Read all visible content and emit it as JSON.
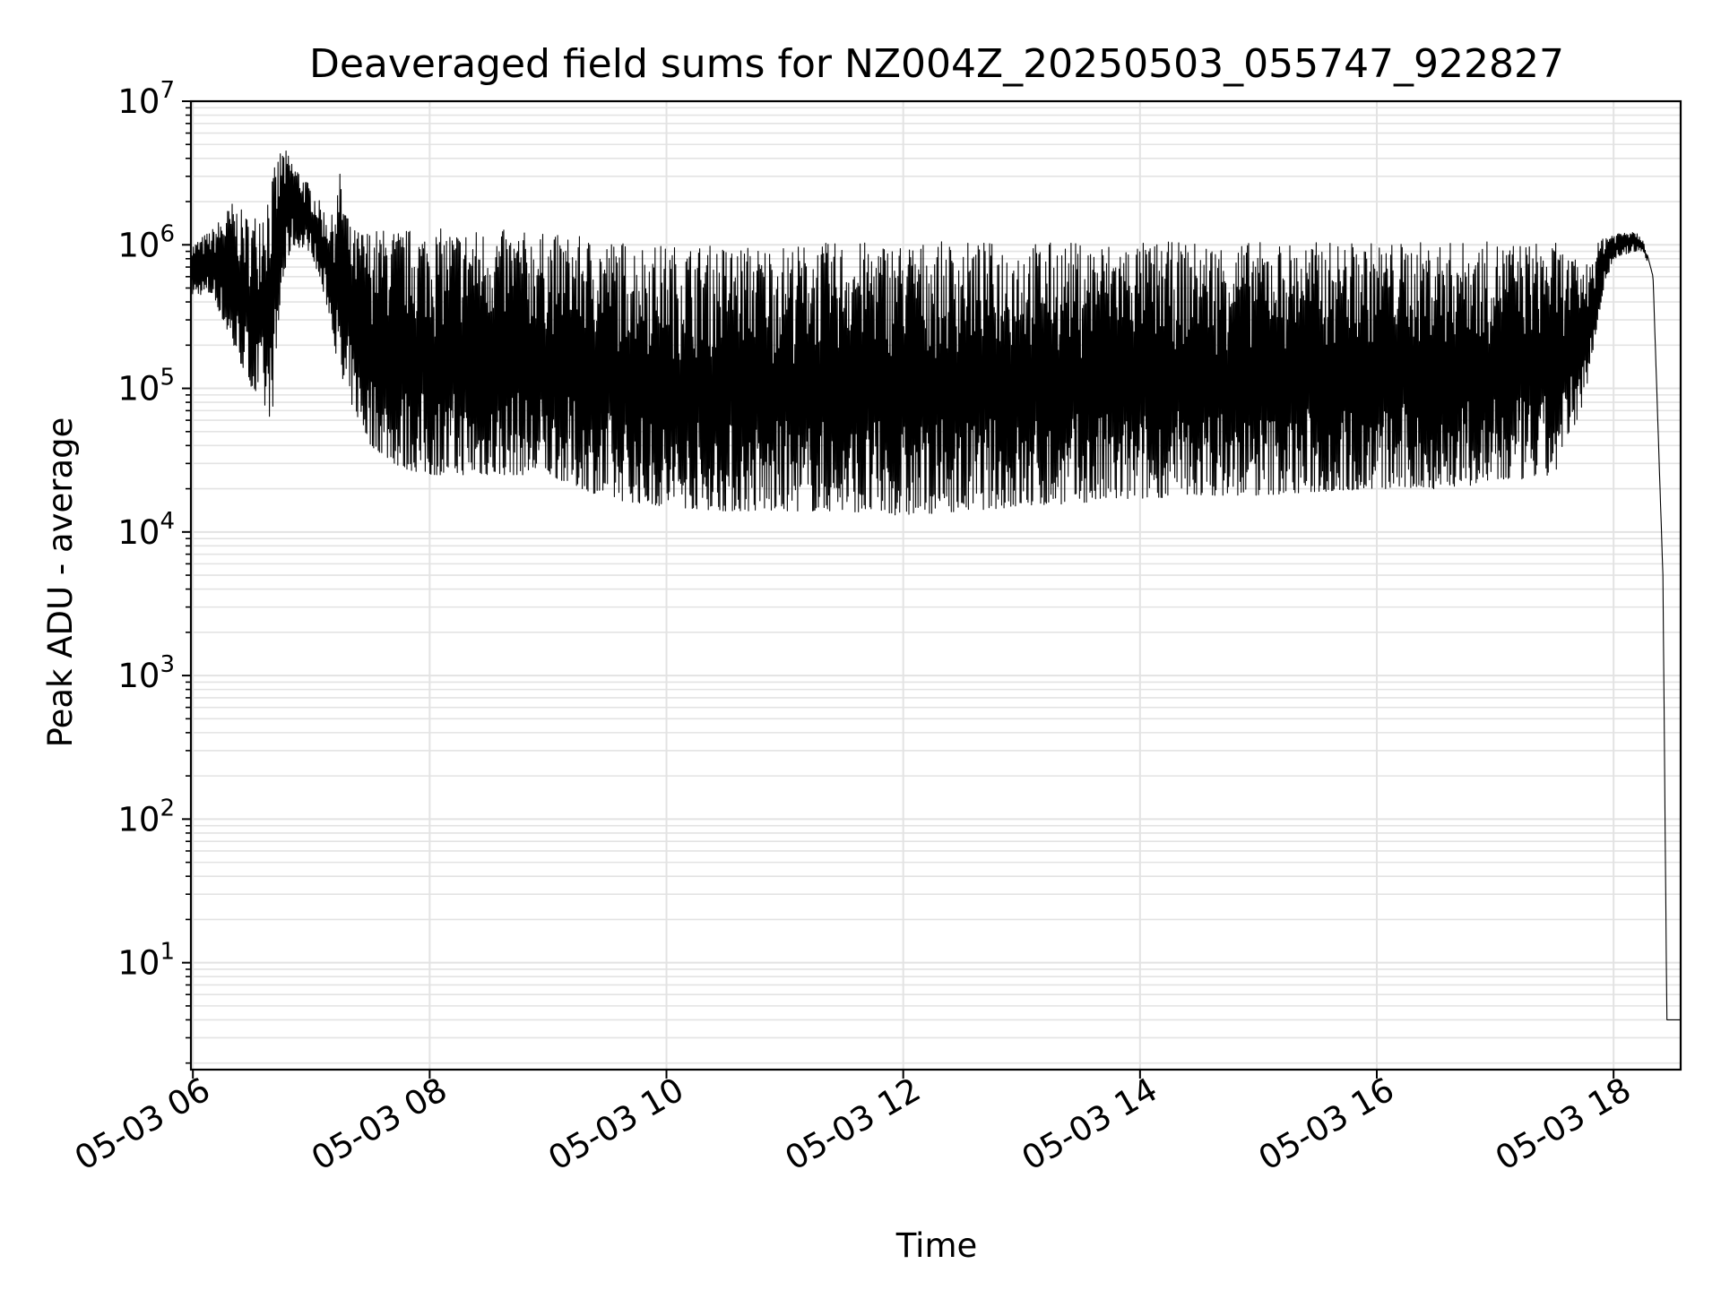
{
  "chart_data": {
    "type": "line",
    "title": "Deaveraged field sums for NZ004Z_20250503_055747_922827",
    "xlabel": "Time",
    "ylabel": "Peak ADU - average",
    "yscale": "log",
    "ylim": [
      1.8,
      10000000
    ],
    "xlim": [
      "05-03 05:59",
      "05-03 18:34"
    ],
    "grid": "both",
    "line_color": "#000000",
    "grid_color": "#e3e3e3",
    "xticks": [
      {
        "t": "05-03 06:00",
        "label": "05-03 06"
      },
      {
        "t": "05-03 08:00",
        "label": "05-03 08"
      },
      {
        "t": "05-03 10:00",
        "label": "05-03 10"
      },
      {
        "t": "05-03 12:00",
        "label": "05-03 12"
      },
      {
        "t": "05-03 14:00",
        "label": "05-03 14"
      },
      {
        "t": "05-03 16:00",
        "label": "05-03 16"
      },
      {
        "t": "05-03 18:00",
        "label": "05-03 18"
      }
    ],
    "yticks": [
      {
        "value": 10,
        "base": "10",
        "exp": "1"
      },
      {
        "value": 100,
        "base": "10",
        "exp": "2"
      },
      {
        "value": 1000,
        "base": "10",
        "exp": "3"
      },
      {
        "value": 10000,
        "base": "10",
        "exp": "4"
      },
      {
        "value": 100000,
        "base": "10",
        "exp": "5"
      },
      {
        "value": 1000000,
        "base": "10",
        "exp": "6"
      },
      {
        "value": 10000000,
        "base": "10",
        "exp": "7"
      }
    ],
    "series": [
      {
        "x": [
          "05-03 05:59",
          "05-03 06:10",
          "05-03 06:20",
          "05-03 06:30",
          "05-03 06:40",
          "05-03 06:45",
          "05-03 06:50",
          "05-03 07:00",
          "05-03 07:10",
          "05-03 07:15",
          "05-03 07:20",
          "05-03 07:30",
          "05-03 07:45",
          "05-03 08:00",
          "05-03 08:30",
          "05-03 09:00",
          "05-03 09:30",
          "05-03 10:00",
          "05-03 10:30",
          "05-03 11:00",
          "05-03 11:30",
          "05-03 12:00",
          "05-03 12:30",
          "05-03 13:00",
          "05-03 13:30",
          "05-03 14:00",
          "05-03 14:30",
          "05-03 15:00",
          "05-03 15:30",
          "05-03 16:00",
          "05-03 16:30",
          "05-03 17:00",
          "05-03 17:30",
          "05-03 17:45",
          "05-03 17:55",
          "05-03 18:00",
          "05-03 18:10",
          "05-03 18:15",
          "05-03 18:20",
          "05-03 18:25",
          "05-03 18:27",
          "05-03 18:28",
          "05-03 18:34"
        ],
        "peak": [
          1000000,
          1300000,
          2000000,
          1500000,
          3000000,
          5000000,
          4000000,
          2500000,
          1500000,
          3500000,
          1300000,
          1300000,
          1300000,
          1300000,
          1300000,
          1200000,
          1100000,
          1000000,
          1000000,
          1000000,
          1050000,
          1050000,
          1050000,
          1050000,
          1050000,
          1050000,
          1050000,
          1050000,
          1050000,
          1050000,
          1050000,
          1050000,
          1050000,
          700000,
          1200000,
          1200000,
          1300000,
          1100000,
          600000,
          5000,
          4,
          4,
          4
        ],
        "trough": [
          450000,
          450000,
          200000,
          100000,
          60000,
          500000,
          1000000,
          900000,
          300000,
          100000,
          80000,
          40000,
          28000,
          25000,
          25000,
          25000,
          17000,
          15000,
          14000,
          14000,
          14000,
          13000,
          14000,
          15000,
          16000,
          17000,
          18000,
          18000,
          19000,
          20000,
          20000,
          22000,
          25000,
          80000,
          500000,
          800000,
          900000,
          900000,
          600000,
          5000,
          4,
          4,
          4
        ]
      }
    ]
  }
}
